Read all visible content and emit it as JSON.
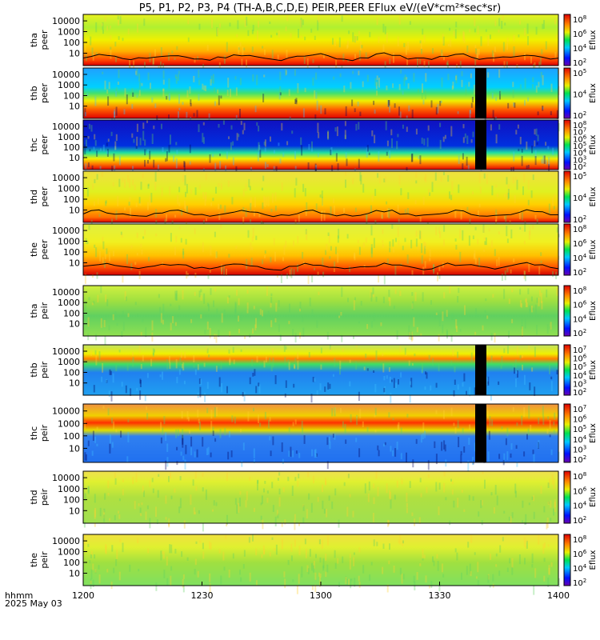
{
  "chart_data": {
    "type": "heatmap",
    "title": "P5, P1, P2, P3, P4 (TH-A,B,C,D,E) PEIR,PEER EFlux eV/(eV*cm²*sec*sr)",
    "x_axis": {
      "label": "hhmm",
      "date_label": "2025 May 03",
      "tick_labels": [
        "1200",
        "1230",
        "1300",
        "1330",
        "1400"
      ],
      "range_hhmm": [
        "1200",
        "1400"
      ]
    },
    "y_axis_ticks": [
      "10",
      "100",
      "1000",
      "10000"
    ],
    "colorbar_label": "Eflux",
    "panels": [
      {
        "probe": "tha",
        "species": "peer",
        "cbar_exponents": [
          2,
          4,
          6,
          8
        ],
        "pattern": "electron-hot",
        "has_line": true
      },
      {
        "probe": "thb",
        "species": "peer",
        "cbar_exponents": [
          2,
          4,
          5
        ],
        "pattern": "electron-cool",
        "gap_start_hhmm": "1339"
      },
      {
        "probe": "thc",
        "species": "peer",
        "cbar_exponents": [
          2,
          3,
          4,
          5,
          6,
          7,
          8
        ],
        "pattern": "electron-bands",
        "gap_start_hhmm": "1339"
      },
      {
        "probe": "thd",
        "species": "peer",
        "cbar_exponents": [
          2,
          4,
          5
        ],
        "pattern": "electron-warm",
        "has_line": true
      },
      {
        "probe": "the",
        "species": "peer",
        "cbar_exponents": [
          2,
          4,
          6,
          8
        ],
        "pattern": "electron-hot2",
        "has_line": true
      },
      {
        "probe": "tha",
        "species": "peir",
        "cbar_exponents": [
          2,
          4,
          6,
          8
        ],
        "pattern": "ion-green"
      },
      {
        "probe": "thb",
        "species": "peir",
        "cbar_exponents": [
          2,
          3,
          4,
          5,
          6,
          7
        ],
        "pattern": "ion-blue",
        "gap_start_hhmm": "1339"
      },
      {
        "probe": "thc",
        "species": "peir",
        "cbar_exponents": [
          2,
          3,
          4,
          5,
          6,
          7
        ],
        "pattern": "ion-bands",
        "gap_start_hhmm": "1339"
      },
      {
        "probe": "thd",
        "species": "peir",
        "cbar_exponents": [
          2,
          4,
          6,
          8
        ],
        "pattern": "ion-green2"
      },
      {
        "probe": "the",
        "species": "peir",
        "cbar_exponents": [
          2,
          4,
          6,
          8
        ],
        "pattern": "ion-green3"
      }
    ]
  }
}
